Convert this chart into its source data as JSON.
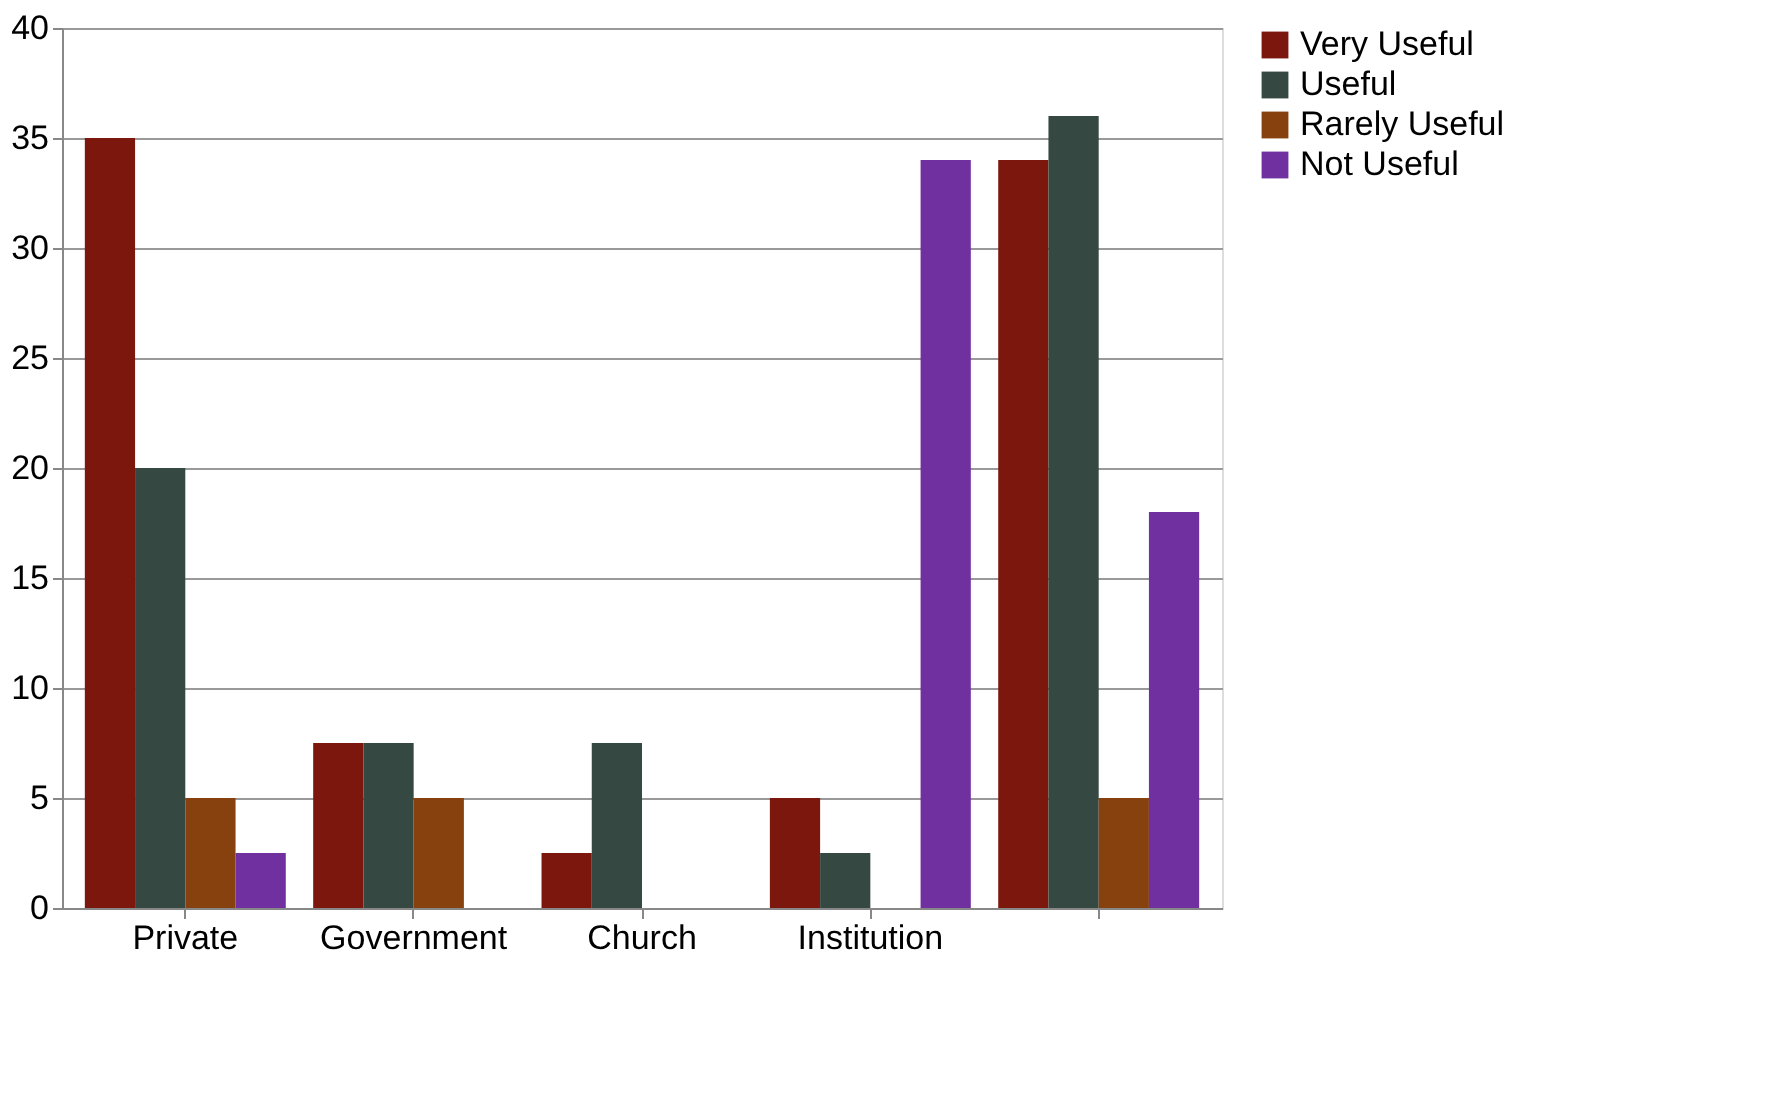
{
  "chart_data": {
    "type": "bar",
    "categories": [
      "Private",
      "Government",
      "Church",
      "Institution",
      null
    ],
    "series": [
      {
        "name": "Very Useful",
        "color": "#7b170c",
        "values": [
          35,
          7.5,
          2.5,
          5,
          34
        ]
      },
      {
        "name": "Useful",
        "color": "#354842",
        "values": [
          20,
          7.5,
          7.5,
          2.5,
          36
        ]
      },
      {
        "name": "Rarely Useful",
        "color": "#86410f",
        "values": [
          5,
          5,
          null,
          null,
          5
        ]
      },
      {
        "name": "Not Useful",
        "color": "#7030a0",
        "values": [
          2.5,
          null,
          null,
          34,
          18
        ]
      }
    ],
    "ylim": [
      0,
      40
    ],
    "yticks": [
      0,
      5,
      10,
      15,
      20,
      25,
      30,
      35,
      40
    ],
    "grid": "y",
    "legend": "right"
  }
}
